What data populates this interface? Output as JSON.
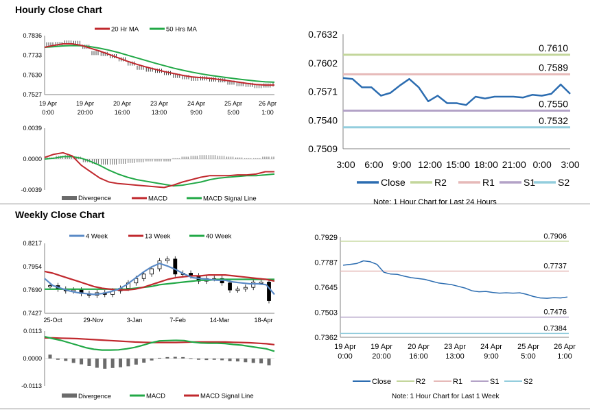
{
  "titles": {
    "hourly": "Hourly Close Chart",
    "weekly": "Weekly Close Chart"
  },
  "notes": {
    "hourly": "Note: 1 Hour Chart for Last 24 Hours",
    "weekly": "Note: 1 Hour Chart for Last 1 Week"
  },
  "colors": {
    "ma_fast": "#c0282d",
    "ma_slow": "#21a846",
    "close": "#2b6cb0",
    "r2": "#c3d69b",
    "r1": "#e6b9b8",
    "s1": "#b3a2c7",
    "s2": "#93cddd",
    "hist": "#6b6b6b",
    "wk4": "#5a8ac6",
    "axis": "#808080"
  },
  "chart_data": [
    {
      "id": "hourly_price",
      "type": "line",
      "legend": [
        "20 Hr MA",
        "50 Hrs MA"
      ],
      "yticks": [
        "0.7836",
        "0.7733",
        "0.7630",
        "0.7527"
      ],
      "ylim": [
        0.7527,
        0.7836
      ],
      "xlabels": [
        [
          "19 Apr",
          "0:00"
        ],
        [
          "19 Apr",
          "20:00"
        ],
        [
          "20 Apr",
          "16:00"
        ],
        [
          "23 Apr",
          "13:00"
        ],
        [
          "24 Apr",
          "9:00"
        ],
        [
          "25 Apr",
          "5:00"
        ],
        [
          "26 Apr",
          "1:00"
        ]
      ],
      "close": [
        0.779,
        0.7792,
        0.78,
        0.7798,
        0.7778,
        0.7745,
        0.774,
        0.7728,
        0.7712,
        0.769,
        0.7668,
        0.7658,
        0.7652,
        0.764,
        0.7625,
        0.7618,
        0.761,
        0.7612,
        0.7606,
        0.7602,
        0.759,
        0.7582,
        0.7578,
        0.7572,
        0.7575,
        0.758
      ],
      "ma20": [
        0.7775,
        0.7785,
        0.7793,
        0.7793,
        0.7785,
        0.777,
        0.7755,
        0.7738,
        0.772,
        0.7702,
        0.7686,
        0.7672,
        0.766,
        0.7648,
        0.7638,
        0.7628,
        0.762,
        0.7616,
        0.7612,
        0.7606,
        0.76,
        0.7593,
        0.7586,
        0.758,
        0.7577,
        0.7577
      ],
      "ma50": [
        0.7775,
        0.7778,
        0.7782,
        0.7784,
        0.7783,
        0.7778,
        0.777,
        0.776,
        0.7748,
        0.7734,
        0.772,
        0.7706,
        0.7692,
        0.7679,
        0.7666,
        0.7655,
        0.7645,
        0.7636,
        0.7628,
        0.7621,
        0.7615,
        0.7609,
        0.7603,
        0.7598,
        0.7594,
        0.7592
      ]
    },
    {
      "id": "hourly_macd",
      "type": "line",
      "legend": [
        "Divergence",
        "MACD",
        "MACD Signal Line"
      ],
      "yticks": [
        "0.0039",
        "0.0000",
        "-0.0039"
      ],
      "ylim": [
        -0.0039,
        0.0039
      ],
      "macd": [
        0.0002,
        0.0006,
        0.0008,
        0.0004,
        -0.0008,
        -0.0016,
        -0.0024,
        -0.0029,
        -0.0031,
        -0.0032,
        -0.0033,
        -0.0034,
        -0.0035,
        -0.0036,
        -0.0033,
        -0.0029,
        -0.0026,
        -0.0023,
        -0.0021,
        -0.0021,
        -0.0021,
        -0.002,
        -0.002,
        -0.0019,
        -0.0016,
        -0.0016
      ],
      "signal": [
        0.0,
        0.0001,
        0.0003,
        0.0003,
        0.0001,
        -0.0003,
        -0.0008,
        -0.0014,
        -0.0019,
        -0.0023,
        -0.0026,
        -0.0028,
        -0.003,
        -0.0032,
        -0.0034,
        -0.0033,
        -0.0031,
        -0.0029,
        -0.0026,
        -0.0024,
        -0.0023,
        -0.0022,
        -0.0021,
        -0.0021,
        -0.002,
        -0.0019
      ],
      "divergence": [
        0.0002,
        0.0004,
        0.0005,
        0.0003,
        -0.0004,
        -0.0006,
        -0.0007,
        -0.0007,
        -0.0006,
        -0.0005,
        -0.0004,
        -0.0003,
        -0.0003,
        -0.0003,
        0.0001,
        0.0003,
        0.0004,
        0.0005,
        0.0005,
        0.0004,
        0.0003,
        0.0002,
        0.0001,
        0.0001,
        0.0003,
        0.0003
      ]
    },
    {
      "id": "hourly_24h",
      "type": "line",
      "legend": [
        "Close",
        "R2",
        "R1",
        "S1",
        "S2"
      ],
      "yticks": [
        "0.7632",
        "0.7602",
        "0.7571",
        "0.7540",
        "0.7509"
      ],
      "ylim": [
        0.7509,
        0.7632
      ],
      "xlabels": [
        "3:00",
        "6:00",
        "9:00",
        "12:00",
        "15:00",
        "18:00",
        "21:00",
        "0:00",
        "3:00"
      ],
      "levels": {
        "r2": 0.761,
        "r1": 0.7589,
        "s1": 0.755,
        "s2": 0.7532
      },
      "level_labels": {
        "r2": "0.7610",
        "r1": "0.7589",
        "s1": "0.7550",
        "s2": "0.7532"
      },
      "close": [
        0.7585,
        0.7584,
        0.7575,
        0.7575,
        0.7566,
        0.7569,
        0.7577,
        0.7584,
        0.7575,
        0.756,
        0.7566,
        0.7558,
        0.7558,
        0.7556,
        0.7565,
        0.7563,
        0.7565,
        0.7565,
        0.7565,
        0.7564,
        0.7567,
        0.7566,
        0.7568,
        0.7578,
        0.7568
      ]
    },
    {
      "id": "weekly_price",
      "type": "line",
      "legend": [
        "4 Week",
        "13 Week",
        "40 Week"
      ],
      "yticks": [
        "0.8217",
        "0.7954",
        "0.7690",
        "0.7427"
      ],
      "ylim": [
        0.7427,
        0.8217
      ],
      "xlabels": [
        "25-Oct",
        "29-Nov",
        "3-Jan",
        "7-Feb",
        "14-Mar",
        "18-Apr"
      ],
      "close": [
        0.774,
        0.77,
        0.768,
        0.769,
        0.765,
        0.763,
        0.766,
        0.764,
        0.768,
        0.771,
        0.777,
        0.782,
        0.787,
        0.793,
        0.802,
        0.804,
        0.787,
        0.788,
        0.785,
        0.779,
        0.782,
        0.782,
        0.777,
        0.769,
        0.77,
        0.772,
        0.778,
        0.778,
        0.757
      ],
      "wk4": [
        0.782,
        0.774,
        0.771,
        0.768,
        0.766,
        0.765,
        0.764,
        0.765,
        0.767,
        0.77,
        0.775,
        0.782,
        0.789,
        0.795,
        0.799,
        0.796,
        0.792,
        0.787,
        0.783,
        0.782,
        0.781,
        0.78,
        0.78,
        0.778,
        0.777,
        0.776,
        0.776,
        0.775,
        0.764
      ],
      "wk13": [
        0.79,
        0.788,
        0.785,
        0.782,
        0.779,
        0.776,
        0.773,
        0.771,
        0.77,
        0.769,
        0.769,
        0.77,
        0.772,
        0.775,
        0.778,
        0.781,
        0.783,
        0.784,
        0.785,
        0.785,
        0.786,
        0.786,
        0.786,
        0.785,
        0.784,
        0.783,
        0.782,
        0.781,
        0.779
      ],
      "wk40": [
        0.77,
        0.77,
        0.77,
        0.77,
        0.77,
        0.77,
        0.77,
        0.77,
        0.77,
        0.77,
        0.77,
        0.771,
        0.772,
        0.773,
        0.775,
        0.776,
        0.777,
        0.778,
        0.779,
        0.78,
        0.78,
        0.781,
        0.781,
        0.781,
        0.781,
        0.781,
        0.781,
        0.781,
        0.781
      ]
    },
    {
      "id": "weekly_macd",
      "type": "line",
      "legend": [
        "Divergence",
        "MACD",
        "MACD Signal Line"
      ],
      "yticks": [
        "0.0113",
        "0.0000",
        "-0.0113"
      ],
      "ylim": [
        -0.0113,
        0.0113
      ],
      "macd": [
        0.009,
        0.0082,
        0.0075,
        0.0065,
        0.0055,
        0.0045,
        0.0038,
        0.0035,
        0.0035,
        0.0036,
        0.004,
        0.0046,
        0.0055,
        0.0065,
        0.0073,
        0.0074,
        0.0075,
        0.0074,
        0.0068,
        0.0064,
        0.0063,
        0.0063,
        0.0062,
        0.0058,
        0.0055,
        0.005,
        0.0045,
        0.004,
        0.003
      ],
      "signal": [
        0.0085,
        0.0085,
        0.0084,
        0.0083,
        0.0082,
        0.008,
        0.0078,
        0.0076,
        0.0074,
        0.0072,
        0.007,
        0.0068,
        0.0067,
        0.0066,
        0.0066,
        0.0066,
        0.0066,
        0.0067,
        0.0068,
        0.0068,
        0.0068,
        0.0068,
        0.0068,
        0.0067,
        0.0066,
        0.0065,
        0.0063,
        0.0061,
        0.0057
      ],
      "divergence": [
        0.0016,
        -0.0005,
        -0.001,
        -0.0018,
        -0.0024,
        -0.0031,
        -0.0038,
        -0.0042,
        -0.0039,
        -0.0036,
        -0.0032,
        -0.0025,
        -0.0017,
        -0.0008,
        0.0003,
        0.0006,
        0.0007,
        0.0006,
        0.0,
        -0.0005,
        -0.0006,
        -0.0005,
        -0.0007,
        -0.0011,
        -0.0012,
        -0.0015,
        -0.0018,
        -0.002,
        -0.0028
      ]
    },
    {
      "id": "weekly_1w",
      "type": "line",
      "legend": [
        "Close",
        "R2",
        "R1",
        "S1",
        "S2"
      ],
      "yticks": [
        "0.7929",
        "0.7787",
        "0.7645",
        "0.7503",
        "0.7362"
      ],
      "ylim": [
        0.7362,
        0.7929
      ],
      "xlabels": [
        [
          "19 Apr",
          "0:00"
        ],
        [
          "19 Apr",
          "20:00"
        ],
        [
          "20 Apr",
          "16:00"
        ],
        [
          "23 Apr",
          "13:00"
        ],
        [
          "24 Apr",
          "9:00"
        ],
        [
          "25 Apr",
          "5:00"
        ],
        [
          "26 Apr",
          "1:00"
        ]
      ],
      "levels": {
        "r2": 0.7906,
        "r1": 0.7737,
        "s1": 0.7476,
        "s2": 0.7384
      },
      "level_labels": {
        "r2": "0.7906",
        "r1": "0.7737",
        "s1": "0.7476",
        "s2": "0.7384"
      },
      "close": [
        0.777,
        0.7775,
        0.778,
        0.7795,
        0.779,
        0.7775,
        0.773,
        0.772,
        0.7718,
        0.7708,
        0.77,
        0.7695,
        0.769,
        0.768,
        0.767,
        0.7665,
        0.766,
        0.765,
        0.764,
        0.7625,
        0.762,
        0.7622,
        0.7616,
        0.7612,
        0.7614,
        0.7612,
        0.7614,
        0.7605,
        0.7593,
        0.7585,
        0.7583,
        0.7586,
        0.7585,
        0.759
      ]
    }
  ]
}
